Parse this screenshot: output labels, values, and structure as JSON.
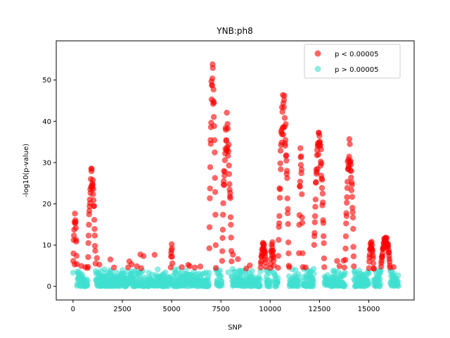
{
  "chart_data": {
    "type": "scatter",
    "title": "YNB:ph8",
    "xlabel": "SNP",
    "ylabel": "-log10(p-value)",
    "xlim": [
      -850,
      17300
    ],
    "ylim": [
      -3.3,
      59.5
    ],
    "xticks": [
      0,
      2500,
      5000,
      7500,
      10000,
      12500,
      15000
    ],
    "yticks": [
      0,
      10,
      20,
      30,
      40,
      50
    ],
    "legend_position": "top-right",
    "threshold_label": "p < 0.00005",
    "series": [
      {
        "name": "p < 0.00005",
        "color": "#ff0000",
        "opacity": 0.6
      },
      {
        "name": "p > 0.00005",
        "color": "#40e0d0",
        "opacity": 0.6
      }
    ],
    "peaks": [
      {
        "x_start": 0,
        "x_end": 200,
        "max": 17.8
      },
      {
        "x_start": 750,
        "x_end": 1150,
        "max": 29.3
      },
      {
        "x_start": 4950,
        "x_end": 5050,
        "max": 10.5
      },
      {
        "x_start": 6900,
        "x_end": 7250,
        "max": 56.5
      },
      {
        "x_start": 7550,
        "x_end": 8050,
        "max": 42.3
      },
      {
        "x_start": 9500,
        "x_end": 9800,
        "max": 10.8
      },
      {
        "x_start": 10000,
        "x_end": 10200,
        "max": 11.0
      },
      {
        "x_start": 10400,
        "x_end": 10950,
        "max": 47.8
      },
      {
        "x_start": 11450,
        "x_end": 11650,
        "max": 34.8
      },
      {
        "x_start": 12200,
        "x_end": 12750,
        "max": 39.0
      },
      {
        "x_start": 13800,
        "x_end": 14250,
        "max": 36.0
      },
      {
        "x_start": 15000,
        "x_end": 15250,
        "max": 11.2
      },
      {
        "x_start": 15600,
        "x_end": 16100,
        "max": 12.5
      }
    ],
    "n_snps": 16500
  }
}
